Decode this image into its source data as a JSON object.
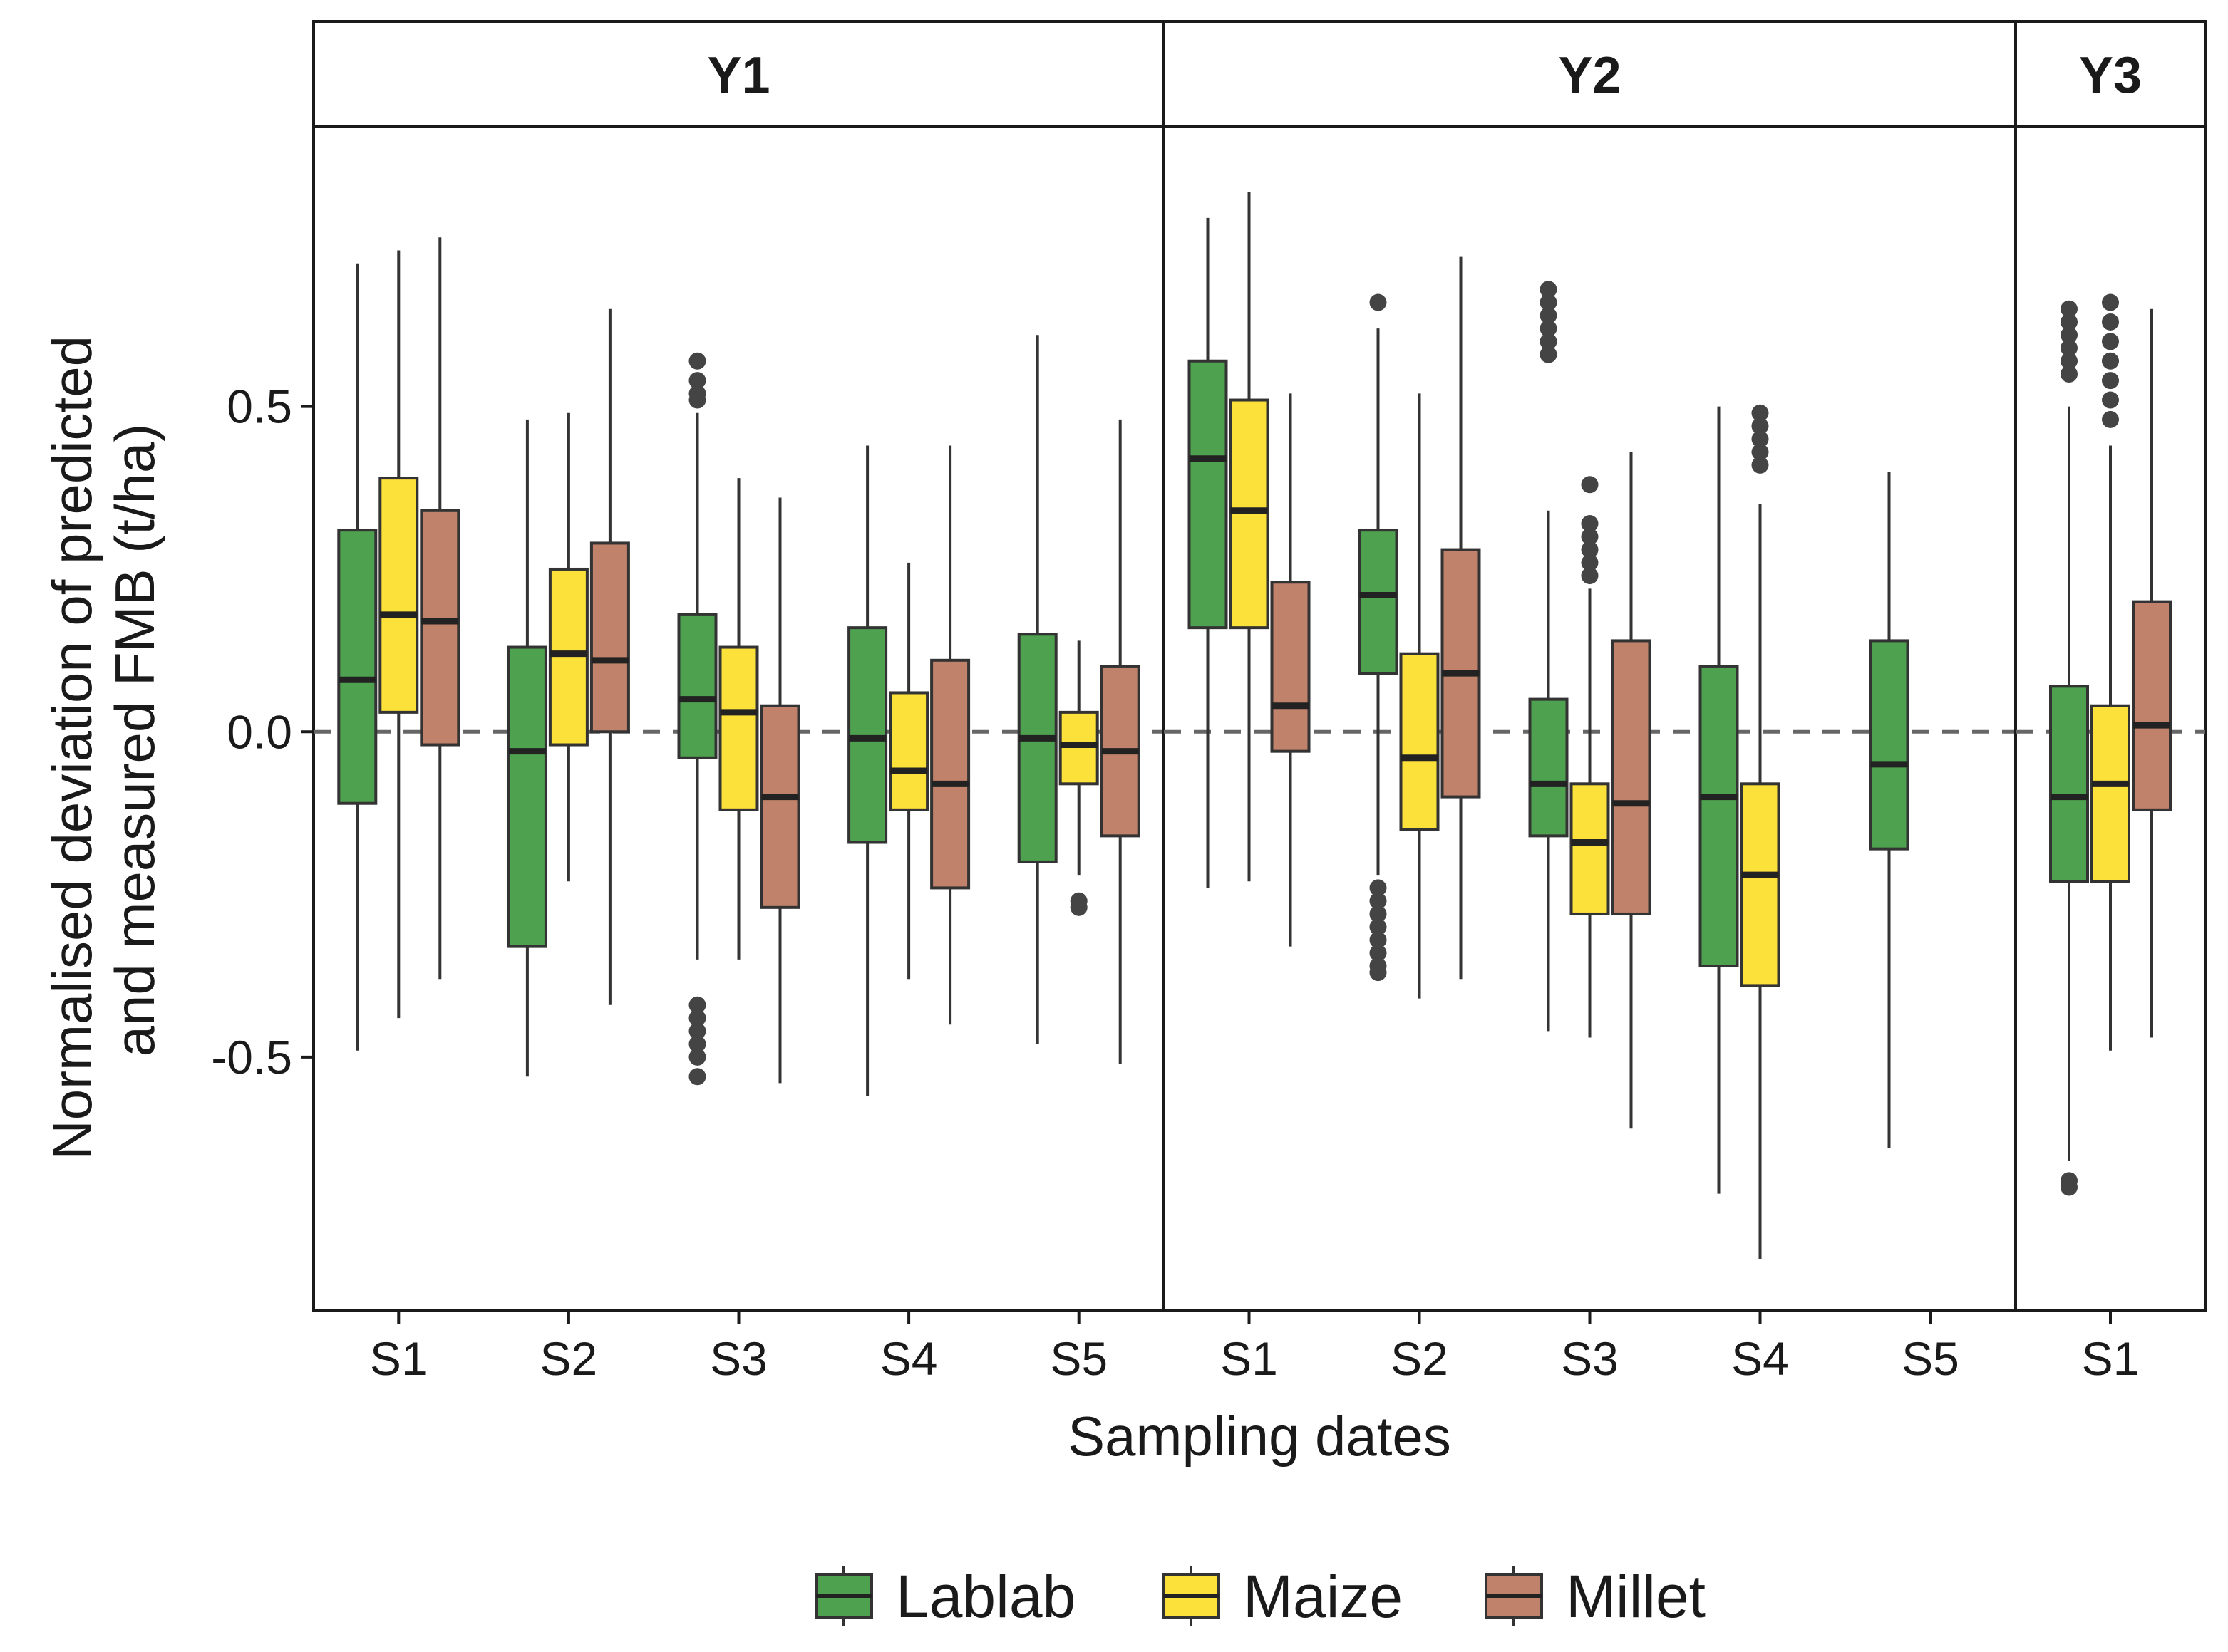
{
  "chart_data": {
    "type": "boxplot",
    "xlabel": "Sampling dates",
    "ylabel_lines": [
      "Normalised deviation of predicted",
      "and measured FMB (t/ha)"
    ],
    "ylim": [
      -0.89,
      0.93
    ],
    "yticks": [
      {
        "value": 0.5,
        "label": "0.5"
      },
      {
        "value": 0.0,
        "label": "0.0"
      },
      {
        "value": -0.5,
        "label": "-0.5"
      }
    ],
    "reference_line": 0,
    "legend": [
      {
        "name": "Lablab",
        "color": "#4ea24f"
      },
      {
        "name": "Maize",
        "color": "#fde13b"
      },
      {
        "name": "Millet",
        "color": "#c0826a"
      }
    ],
    "panels": [
      {
        "name": "Y1",
        "categories": [
          "S1",
          "S2",
          "S3",
          "S4",
          "S5"
        ],
        "boxes": [
          {
            "cat": "S1",
            "series": "Lablab",
            "low": -0.49,
            "q1": -0.11,
            "median": 0.08,
            "q3": 0.31,
            "high": 0.72,
            "outliers": []
          },
          {
            "cat": "S1",
            "series": "Maize",
            "low": -0.44,
            "q1": 0.03,
            "median": 0.18,
            "q3": 0.39,
            "high": 0.74,
            "outliers": []
          },
          {
            "cat": "S1",
            "series": "Millet",
            "low": -0.38,
            "q1": -0.02,
            "median": 0.17,
            "q3": 0.34,
            "high": 0.76,
            "outliers": []
          },
          {
            "cat": "S2",
            "series": "Lablab",
            "low": -0.53,
            "q1": -0.33,
            "median": -0.03,
            "q3": 0.13,
            "high": 0.48,
            "outliers": []
          },
          {
            "cat": "S2",
            "series": "Maize",
            "low": -0.23,
            "q1": -0.02,
            "median": 0.12,
            "q3": 0.25,
            "high": 0.49,
            "outliers": []
          },
          {
            "cat": "S2",
            "series": "Millet",
            "low": -0.42,
            "q1": 0.0,
            "median": 0.11,
            "q3": 0.29,
            "high": 0.65,
            "outliers": []
          },
          {
            "cat": "S3",
            "series": "Lablab",
            "low": -0.35,
            "q1": -0.04,
            "median": 0.05,
            "q3": 0.18,
            "high": 0.49,
            "outliers": [
              0.57,
              0.54,
              0.52,
              0.51,
              -0.42,
              -0.44,
              -0.46,
              -0.48,
              -0.5,
              -0.53
            ]
          },
          {
            "cat": "S3",
            "series": "Maize",
            "low": -0.35,
            "q1": -0.12,
            "median": 0.03,
            "q3": 0.13,
            "high": 0.39,
            "outliers": []
          },
          {
            "cat": "S3",
            "series": "Millet",
            "low": -0.54,
            "q1": -0.27,
            "median": -0.1,
            "q3": 0.04,
            "high": 0.36,
            "outliers": []
          },
          {
            "cat": "S4",
            "series": "Lablab",
            "low": -0.56,
            "q1": -0.17,
            "median": -0.01,
            "q3": 0.16,
            "high": 0.44,
            "outliers": []
          },
          {
            "cat": "S4",
            "series": "Maize",
            "low": -0.38,
            "q1": -0.12,
            "median": -0.06,
            "q3": 0.06,
            "high": 0.26,
            "outliers": []
          },
          {
            "cat": "S4",
            "series": "Millet",
            "low": -0.45,
            "q1": -0.24,
            "median": -0.08,
            "q3": 0.11,
            "high": 0.44,
            "outliers": []
          },
          {
            "cat": "S5",
            "series": "Lablab",
            "low": -0.48,
            "q1": -0.2,
            "median": -0.01,
            "q3": 0.15,
            "high": 0.61,
            "outliers": []
          },
          {
            "cat": "S5",
            "series": "Maize",
            "low": -0.22,
            "q1": -0.08,
            "median": -0.02,
            "q3": 0.03,
            "high": 0.14,
            "outliers": [
              -0.26,
              -0.27
            ]
          },
          {
            "cat": "S5",
            "series": "Millet",
            "low": -0.51,
            "q1": -0.16,
            "median": -0.03,
            "q3": 0.1,
            "high": 0.48,
            "outliers": []
          }
        ]
      },
      {
        "name": "Y2",
        "categories": [
          "S1",
          "S2",
          "S3",
          "S4",
          "S5"
        ],
        "boxes": [
          {
            "cat": "S1",
            "series": "Lablab",
            "low": -0.24,
            "q1": 0.16,
            "median": 0.42,
            "q3": 0.57,
            "high": 0.79,
            "outliers": []
          },
          {
            "cat": "S1",
            "series": "Maize",
            "low": -0.23,
            "q1": 0.16,
            "median": 0.34,
            "q3": 0.51,
            "high": 0.83,
            "outliers": []
          },
          {
            "cat": "S1",
            "series": "Millet",
            "low": -0.33,
            "q1": -0.03,
            "median": 0.04,
            "q3": 0.23,
            "high": 0.52,
            "outliers": []
          },
          {
            "cat": "S2",
            "series": "Lablab",
            "low": -0.22,
            "q1": 0.09,
            "median": 0.21,
            "q3": 0.31,
            "high": 0.62,
            "outliers": [
              0.66,
              -0.24,
              -0.26,
              -0.28,
              -0.3,
              -0.32,
              -0.34,
              -0.36,
              -0.37
            ]
          },
          {
            "cat": "S2",
            "series": "Maize",
            "low": -0.41,
            "q1": -0.15,
            "median": -0.04,
            "q3": 0.12,
            "high": 0.52,
            "outliers": []
          },
          {
            "cat": "S2",
            "series": "Millet",
            "low": -0.38,
            "q1": -0.1,
            "median": 0.09,
            "q3": 0.28,
            "high": 0.73,
            "outliers": []
          },
          {
            "cat": "S3",
            "series": "Lablab",
            "low": -0.46,
            "q1": -0.16,
            "median": -0.08,
            "q3": 0.05,
            "high": 0.34,
            "outliers": [
              0.68,
              0.66,
              0.64,
              0.62,
              0.6,
              0.58
            ]
          },
          {
            "cat": "S3",
            "series": "Maize",
            "low": -0.47,
            "q1": -0.28,
            "median": -0.17,
            "q3": -0.08,
            "high": 0.22,
            "outliers": [
              0.38,
              0.32,
              0.3,
              0.28,
              0.26,
              0.24
            ]
          },
          {
            "cat": "S3",
            "series": "Millet",
            "low": -0.61,
            "q1": -0.28,
            "median": -0.11,
            "q3": 0.14,
            "high": 0.43,
            "outliers": []
          },
          {
            "cat": "S4",
            "series": "Lablab",
            "low": -0.71,
            "q1": -0.36,
            "median": -0.1,
            "q3": 0.1,
            "high": 0.5,
            "outliers": []
          },
          {
            "cat": "S4",
            "series": "Maize",
            "low": -0.81,
            "q1": -0.39,
            "median": -0.22,
            "q3": -0.08,
            "high": 0.35,
            "outliers": [
              0.49,
              0.47,
              0.45,
              0.43,
              0.41
            ]
          },
          {
            "cat": "S5",
            "series": "Lablab",
            "low": -0.64,
            "q1": -0.18,
            "median": -0.05,
            "q3": 0.14,
            "high": 0.4,
            "outliers": []
          }
        ]
      },
      {
        "name": "Y3",
        "categories": [
          "S1"
        ],
        "boxes": [
          {
            "cat": "S1",
            "series": "Lablab",
            "low": -0.66,
            "q1": -0.23,
            "median": -0.1,
            "q3": 0.07,
            "high": 0.5,
            "outliers": [
              0.65,
              0.63,
              0.61,
              0.59,
              0.57,
              0.55,
              -0.69,
              -0.7
            ]
          },
          {
            "cat": "S1",
            "series": "Maize",
            "low": -0.49,
            "q1": -0.23,
            "median": -0.08,
            "q3": 0.04,
            "high": 0.44,
            "outliers": [
              0.66,
              0.63,
              0.6,
              0.57,
              0.54,
              0.51,
              0.48
            ]
          },
          {
            "cat": "S1",
            "series": "Millet",
            "low": -0.47,
            "q1": -0.12,
            "median": 0.01,
            "q3": 0.2,
            "high": 0.65,
            "outliers": []
          }
        ]
      }
    ]
  }
}
